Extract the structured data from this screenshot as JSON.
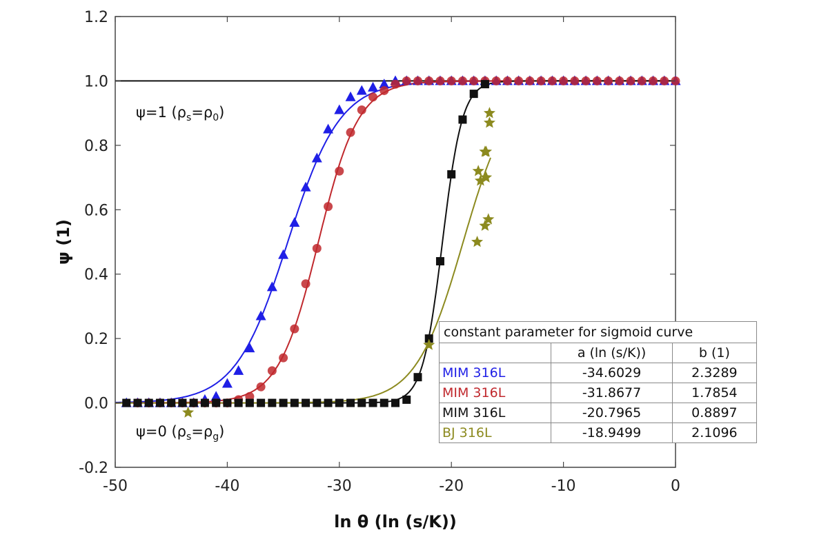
{
  "chart_data": {
    "type": "scatter",
    "xlabel": "ln θ (ln (s/K))",
    "ylabel": "ψ (1)",
    "xlim": [
      -50,
      0
    ],
    "ylim": [
      -0.2,
      1.2
    ],
    "x_ticks": [
      "-50",
      "-40",
      "-30",
      "-20",
      "-10",
      "0"
    ],
    "y_ticks": [
      "-0.2",
      "0.0",
      "0.2",
      "0.4",
      "0.6",
      "0.8",
      "1.0",
      "1.2"
    ],
    "grid": false,
    "reference_line_y": 1.0,
    "annotations": {
      "upper": {
        "prefix": "ψ=1 (ρ",
        "s1": "s",
        "mid": "=ρ",
        "s2": "0",
        "suffix": ")"
      },
      "lower": {
        "prefix": "ψ=0 (ρ",
        "s1": "s",
        "mid": "=ρ",
        "s2": "g",
        "suffix": ")"
      }
    },
    "series": [
      {
        "label": "MIM 316L",
        "color": "#1f1fe6",
        "marker": "triangle",
        "a": -34.6029,
        "b": 2.3289,
        "x": [
          -49,
          -48,
          -47,
          -46,
          -45,
          -44,
          -43,
          -42,
          -41,
          -40,
          -39,
          -38,
          -37,
          -36,
          -35,
          -34,
          -33,
          -32,
          -31,
          -30,
          -29,
          -28,
          -27,
          -26,
          -25,
          -24,
          -23,
          -22,
          -21,
          -20,
          -19,
          -18,
          -17,
          -16,
          -15,
          -14,
          -13,
          -12,
          -11,
          -10,
          -9,
          -8,
          -7,
          -6,
          -5,
          -4,
          -3,
          -2,
          -1,
          0
        ],
        "y": [
          0.0,
          0.0,
          0.0,
          0.0,
          0.0,
          0.0,
          0.0,
          0.01,
          0.02,
          0.06,
          0.1,
          0.17,
          0.27,
          0.36,
          0.46,
          0.56,
          0.67,
          0.76,
          0.85,
          0.91,
          0.95,
          0.97,
          0.98,
          0.99,
          1.0,
          1.0,
          1.0,
          1.0,
          1.0,
          1.0,
          1.0,
          1.0,
          1.0,
          1.0,
          1.0,
          1.0,
          1.0,
          1.0,
          1.0,
          1.0,
          1.0,
          1.0,
          1.0,
          1.0,
          1.0,
          1.0,
          1.0,
          1.0,
          1.0,
          1.0
        ]
      },
      {
        "label": "MIM 316L",
        "color": "#c0282d",
        "marker": "circle",
        "a": -31.8677,
        "b": 1.7854,
        "x": [
          -48,
          -47,
          -46,
          -45,
          -44,
          -43,
          -42,
          -41,
          -40,
          -39,
          -38,
          -37,
          -36,
          -35,
          -34,
          -33,
          -32,
          -31,
          -30,
          -29,
          -28,
          -27,
          -26,
          -25,
          -24,
          -23,
          -22,
          -21,
          -20,
          -19,
          -18,
          -17,
          -16,
          -15,
          -14,
          -13,
          -12,
          -11,
          -10,
          -9,
          -8,
          -7,
          -6,
          -5,
          -4,
          -3,
          -2,
          -1,
          0
        ],
        "y": [
          0.0,
          0.0,
          0.0,
          0.0,
          0.0,
          0.0,
          0.0,
          0.0,
          0.0,
          0.01,
          0.02,
          0.05,
          0.1,
          0.14,
          0.23,
          0.37,
          0.48,
          0.61,
          0.72,
          0.84,
          0.91,
          0.95,
          0.97,
          0.99,
          1.0,
          1.0,
          1.0,
          1.0,
          1.0,
          1.0,
          1.0,
          1.0,
          1.0,
          1.0,
          1.0,
          1.0,
          1.0,
          1.0,
          1.0,
          1.0,
          1.0,
          1.0,
          1.0,
          1.0,
          1.0,
          1.0,
          1.0,
          1.0,
          1.0
        ]
      },
      {
        "label": "MIM 316L",
        "color": "#111111",
        "marker": "square",
        "a": -20.7965,
        "b": 0.8897,
        "x": [
          -49,
          -48,
          -47,
          -46,
          -45,
          -44,
          -43,
          -42,
          -41,
          -40,
          -39,
          -38,
          -37,
          -36,
          -35,
          -34,
          -33,
          -32,
          -31,
          -30,
          -29,
          -28,
          -27,
          -26,
          -25,
          -24,
          -23,
          -22,
          -21,
          -20,
          -19,
          -18,
          -17
        ],
        "y": [
          0.0,
          0.0,
          0.0,
          0.0,
          0.0,
          0.0,
          0.0,
          0.0,
          0.0,
          0.0,
          0.0,
          0.0,
          0.0,
          0.0,
          0.0,
          0.0,
          0.0,
          0.0,
          0.0,
          0.0,
          0.0,
          0.0,
          0.0,
          0.0,
          0.0,
          0.01,
          0.08,
          0.2,
          0.44,
          0.71,
          0.88,
          0.96,
          0.99
        ]
      },
      {
        "label": "BJ 316L",
        "color": "#8c8a1f",
        "marker": "star",
        "a": -18.9499,
        "b": 2.1096,
        "x": [
          -43.5,
          -22,
          -17.6,
          -17.4,
          -17.0,
          -16.9,
          -17.0,
          -16.6,
          -16.6,
          -16.9,
          -17.7,
          -16.7
        ],
        "y": [
          -0.03,
          0.18,
          0.72,
          0.69,
          0.78,
          0.78,
          0.55,
          0.9,
          0.87,
          0.7,
          0.5,
          0.57
        ],
        "curve_xlim": [
          -50,
          -16.5
        ]
      }
    ],
    "legend_table": {
      "title": "constant parameter for sigmoid curve",
      "columns": [
        "",
        "a (ln (s/K))",
        "b (1)"
      ],
      "rows": [
        {
          "label": "MIM 316L",
          "a": "-34.6029",
          "b": "2.3289",
          "color": "#1f1fe6"
        },
        {
          "label": "MIM 316L",
          "a": "-31.8677",
          "b": "1.7854",
          "color": "#c0282d"
        },
        {
          "label": "MIM 316L",
          "a": "-20.7965",
          "b": "0.8897",
          "color": "#111111"
        },
        {
          "label": "BJ 316L",
          "a": "-18.9499",
          "b": "2.1096",
          "color": "#8c8a1f"
        }
      ],
      "placement": "bottom-right"
    }
  }
}
